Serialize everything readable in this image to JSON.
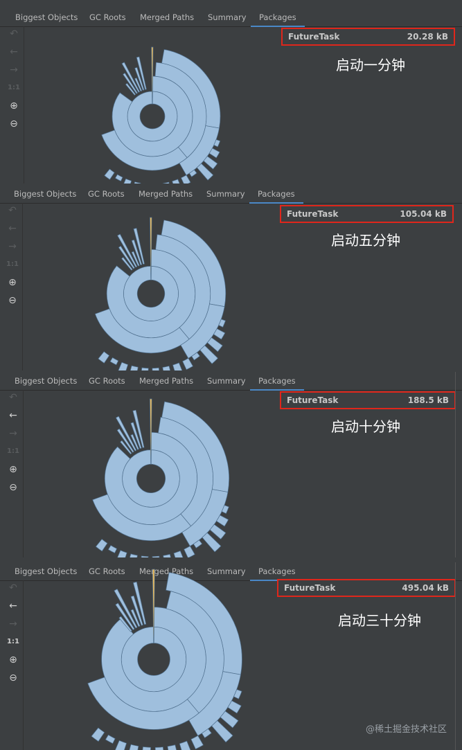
{
  "tabs": [
    "Biggest Objects",
    "GC Roots",
    "Merged Paths",
    "Summary",
    "Packages"
  ],
  "active_tab": "Packages",
  "colors": {
    "sunburst": "#9fbfdd",
    "sunburst_line": "#4f6f8d",
    "highlight": "#e5b85f",
    "box": "#e0261b"
  },
  "toolbar": {
    "undo": "↶",
    "back": "←",
    "forward": "→",
    "reset": "1:1",
    "zoom_in": "⊕",
    "zoom_out": "⊖"
  },
  "panels": [
    {
      "name": "FutureTask",
      "size": "20.28 kB",
      "caption": "启动一分钟"
    },
    {
      "name": "FutureTask",
      "size": "105.04 kB",
      "caption": "启动五分钟"
    },
    {
      "name": "FutureTask",
      "size": "188.5 kB",
      "caption": "启动十分钟"
    },
    {
      "name": "FutureTask",
      "size": "495.04 kB",
      "caption": "启动三十分钟"
    }
  ],
  "watermark": "@稀土掘金技术社区"
}
